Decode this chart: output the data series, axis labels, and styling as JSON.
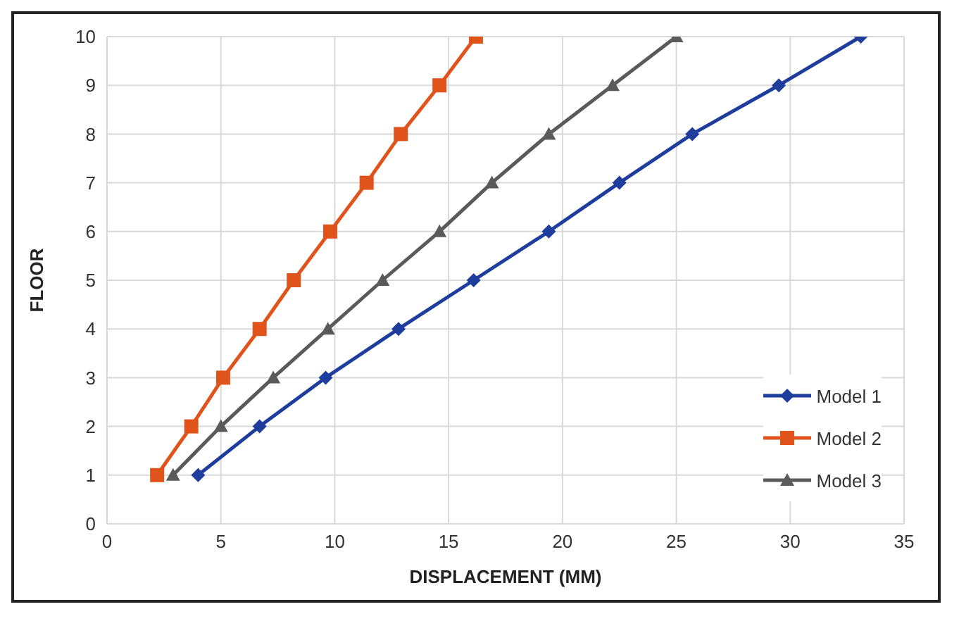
{
  "chart_data": {
    "type": "line",
    "xlabel": "DISPLACEMENT (MM)",
    "ylabel": "FLOOR",
    "xlim": [
      0,
      35
    ],
    "xticks": [
      0,
      5,
      10,
      15,
      20,
      25,
      30,
      35
    ],
    "ylim": [
      0,
      10
    ],
    "yticks": [
      0,
      1,
      2,
      3,
      4,
      5,
      6,
      7,
      8,
      9,
      10
    ],
    "grid": true,
    "legend": "bottom right",
    "series": [
      {
        "name": "Model 1",
        "color": "#1f3d9c",
        "marker": "diamond",
        "x": [
          4.0,
          6.7,
          9.6,
          12.8,
          16.1,
          19.4,
          22.5,
          25.7,
          29.5,
          33.1
        ],
        "values": [
          1,
          2,
          3,
          4,
          5,
          6,
          7,
          8,
          9,
          10
        ]
      },
      {
        "name": "Model 2",
        "color": "#e0531b",
        "marker": "square",
        "x": [
          2.2,
          3.7,
          5.1,
          6.7,
          8.2,
          9.8,
          11.4,
          12.9,
          14.6,
          16.2
        ],
        "values": [
          1,
          2,
          3,
          4,
          5,
          6,
          7,
          8,
          9,
          10
        ]
      },
      {
        "name": "Model 3",
        "color": "#5a5a5a",
        "marker": "triangle",
        "x": [
          2.9,
          5.0,
          7.3,
          9.7,
          12.1,
          14.6,
          16.9,
          19.4,
          22.2,
          25.0
        ],
        "values": [
          1,
          2,
          3,
          4,
          5,
          6,
          7,
          8,
          9,
          10
        ]
      }
    ]
  }
}
